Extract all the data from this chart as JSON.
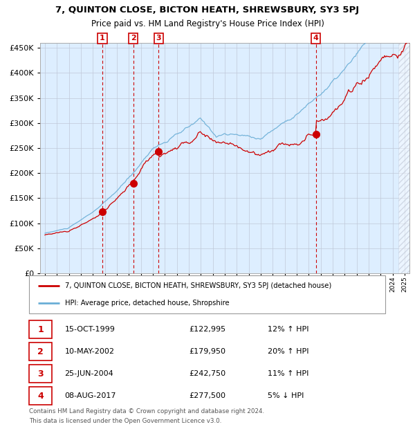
{
  "title": "7, QUINTON CLOSE, BICTON HEATH, SHREWSBURY, SY3 5PJ",
  "subtitle": "Price paid vs. HM Land Registry's House Price Index (HPI)",
  "legend_line1": "7, QUINTON CLOSE, BICTON HEATH, SHREWSBURY, SY3 5PJ (detached house)",
  "legend_line2": "HPI: Average price, detached house, Shropshire",
  "footer1": "Contains HM Land Registry data © Crown copyright and database right 2024.",
  "footer2": "This data is licensed under the Open Government Licence v3.0.",
  "transactions": [
    {
      "num": 1,
      "date": "15-OCT-1999",
      "price": 122995,
      "pct": "12%",
      "dir": "↑",
      "year": 1999.79
    },
    {
      "num": 2,
      "date": "10-MAY-2002",
      "price": 179950,
      "pct": "20%",
      "dir": "↑",
      "year": 2002.36
    },
    {
      "num": 3,
      "date": "25-JUN-2004",
      "price": 242750,
      "pct": "11%",
      "dir": "↑",
      "year": 2004.48
    },
    {
      "num": 4,
      "date": "08-AUG-2017",
      "price": 277500,
      "pct": "5%",
      "dir": "↓",
      "year": 2017.6
    }
  ],
  "hpi_color": "#6aaed6",
  "price_color": "#cc0000",
  "bg_color": "#ddeeff",
  "grid_color": "#c0c8d8",
  "vline_color": "#cc0000",
  "ylim": [
    0,
    460000
  ],
  "xlim_start": 1994.6,
  "xlim_end": 2025.4,
  "hatch_start": 2024.5
}
